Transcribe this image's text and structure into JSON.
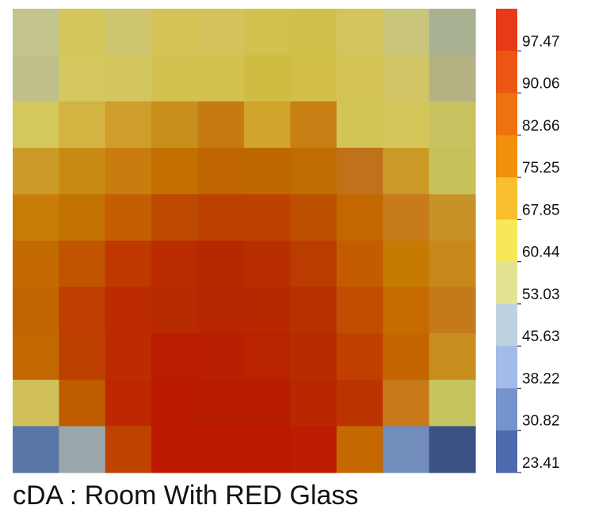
{
  "chart_data": {
    "type": "heatmap",
    "title": "cDA : Room With RED Glass",
    "grid": false,
    "legend": "right",
    "colorbar": {
      "position": "right",
      "tick_labels": [
        "97.47",
        "90.06",
        "82.66",
        "75.25",
        "67.85",
        "60.44",
        "53.03",
        "45.63",
        "38.22",
        "30.82",
        "23.41"
      ],
      "color_bins": [
        "#e83a18",
        "#eb5614",
        "#ee7210",
        "#f0900c",
        "#f8c030",
        "#f7e85a",
        "#e3e493",
        "#bdd2e0",
        "#a2bbe8",
        "#7593cc",
        "#4c6aad"
      ]
    },
    "rows": 10,
    "cols": 10,
    "cell_colors": [
      [
        "#c3c48c",
        "#d3c65b",
        "#cfc56e",
        "#d4c254",
        "#d3c35a",
        "#d2c14f",
        "#d2c04d",
        "#d3c55d",
        "#c9c67b",
        "#a8b293"
      ],
      [
        "#c0bf89",
        "#d3c75d",
        "#d3c65e",
        "#d3c24f",
        "#d3c04d",
        "#d1bc43",
        "#d3be47",
        "#d3c352",
        "#d1c565",
        "#b4b283"
      ],
      [
        "#d3c95b",
        "#d3b443",
        "#cf9e2a",
        "#c98f1c",
        "#c77a12",
        "#d1a52b",
        "#c97f13",
        "#d3c555",
        "#d5c659",
        "#c8c360"
      ],
      [
        "#cb9b29",
        "#c98a14",
        "#c97d0e",
        "#c47000",
        "#c06600",
        "#c06800",
        "#bf6d00",
        "#c0711a",
        "#cb9a26",
        "#c6c15a"
      ],
      [
        "#c97d08",
        "#c27200",
        "#c55e02",
        "#be4900",
        "#bd4200",
        "#bd4200",
        "#bd4f00",
        "#c36800",
        "#c67a1a",
        "#c79227"
      ],
      [
        "#c26a00",
        "#c15400",
        "#be3800",
        "#ba2b00",
        "#b82800",
        "#b92e00",
        "#bb3c00",
        "#c35c00",
        "#c67b00",
        "#c9881a"
      ],
      [
        "#c16500",
        "#be3d00",
        "#bc2c00",
        "#b82a00",
        "#b62600",
        "#b72800",
        "#b93000",
        "#c24c00",
        "#c56b00",
        "#c6791a"
      ],
      [
        "#c26800",
        "#be4000",
        "#bc2c00",
        "#b91c00",
        "#b71f00",
        "#b82400",
        "#b82a00",
        "#c14000",
        "#c46500",
        "#c88e1e"
      ],
      [
        "#d1c058",
        "#c05c00",
        "#bd2800",
        "#b91a00",
        "#b81c00",
        "#b81c00",
        "#b92600",
        "#bb3400",
        "#c87a1a",
        "#c7c45f"
      ],
      [
        "#5a75a8",
        "#9aa8ac",
        "#bf4200",
        "#bc1800",
        "#bc1800",
        "#bc1800",
        "#bc1c00",
        "#c56800",
        "#728cbc",
        "#3b5284"
      ]
    ]
  }
}
